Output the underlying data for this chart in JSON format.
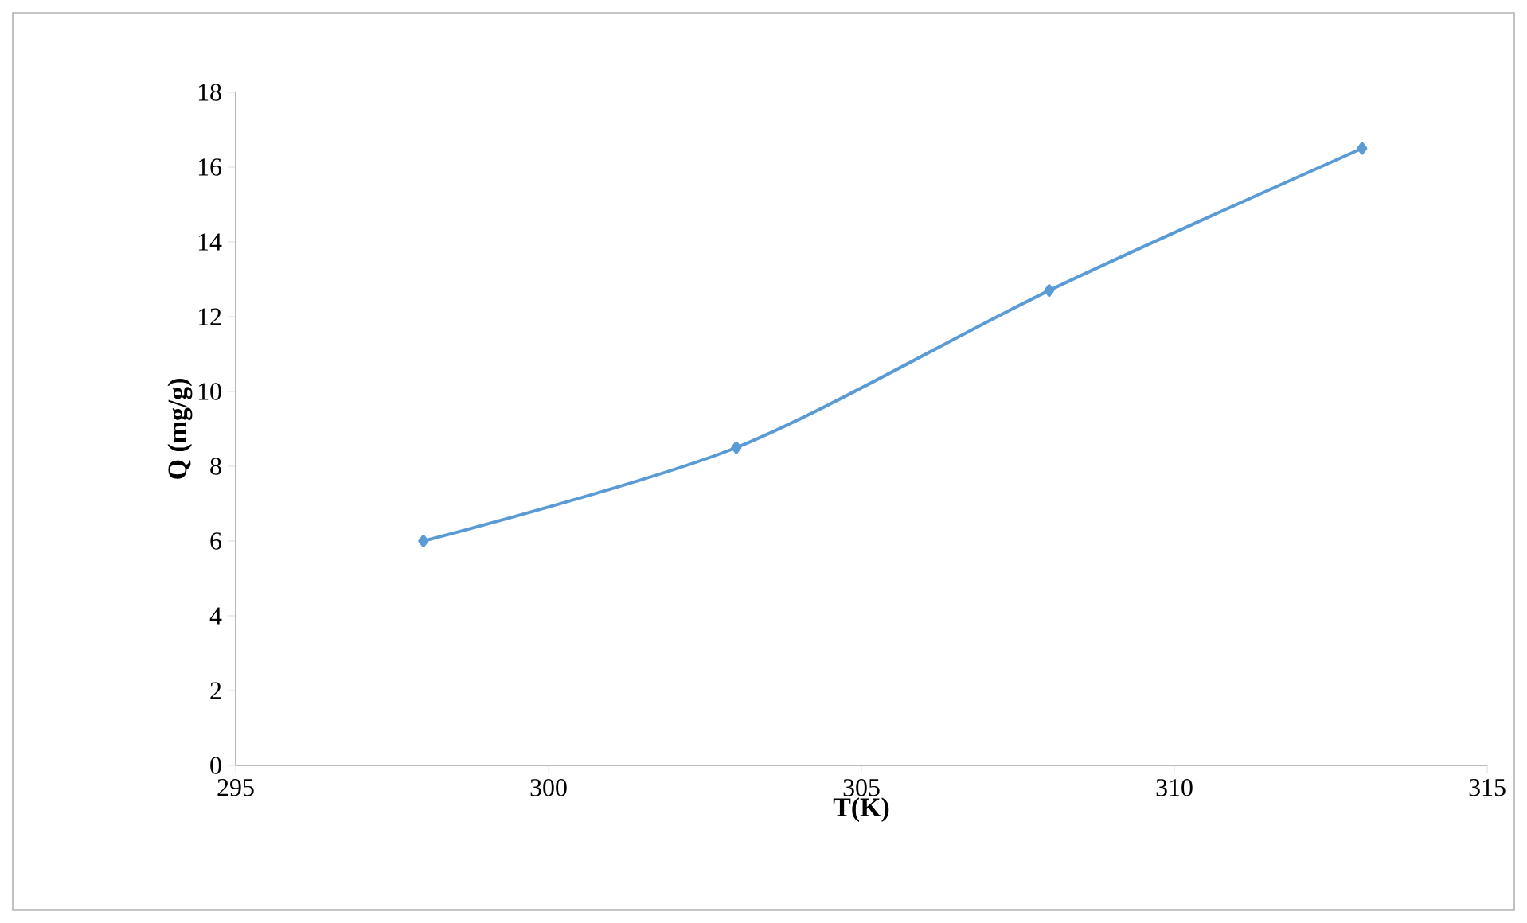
{
  "chart_data": {
    "type": "line",
    "xlabel": "T(K)",
    "ylabel": "Q (mg/g)",
    "x": [
      298,
      303,
      308,
      313
    ],
    "series": [
      {
        "color": "#5b9bd5",
        "values": [
          6.0,
          8.5,
          12.7,
          16.5
        ]
      }
    ],
    "xlim": [
      295,
      315
    ],
    "ylim": [
      0,
      18
    ],
    "xticks": [
      295,
      300,
      305,
      310,
      315
    ],
    "yticks": [
      0,
      2,
      4,
      6,
      8,
      10,
      12,
      14,
      16,
      18
    ],
    "grid": false,
    "marker": "diamond",
    "line_style": "solid"
  }
}
